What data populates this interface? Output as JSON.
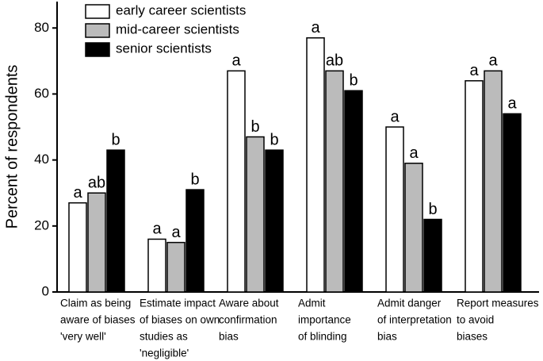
{
  "chart_data": {
    "type": "bar",
    "y_label": "Percent of respondents",
    "categories": [
      [
        "Claim as being",
        "aware of biases",
        " 'very well'"
      ],
      [
        "Estimate impact",
        "of biases on own",
        "studies as",
        "'negligible'"
      ],
      [
        "Aware about",
        "confirmation",
        "bias"
      ],
      [
        "Admit",
        "importance",
        "of blinding"
      ],
      [
        "Admit danger",
        "of interpretation",
        "bias"
      ],
      [
        "Report measures",
        "to avoid",
        "biases"
      ]
    ],
    "series": [
      {
        "name": "early career scientists",
        "color": "#ffffff",
        "values": [
          27,
          16,
          67,
          77,
          50,
          64
        ],
        "letters": [
          "a",
          "a",
          "a",
          "a",
          "a",
          "a"
        ]
      },
      {
        "name": "mid-career scientists",
        "color": "#bbbbbb",
        "values": [
          30,
          15,
          47,
          67,
          39,
          67
        ],
        "letters": [
          "ab",
          "a",
          "b",
          "ab",
          "a",
          "a"
        ]
      },
      {
        "name": "senior scientists",
        "color": "#000000",
        "values": [
          43,
          31,
          43,
          61,
          22,
          54
        ],
        "letters": [
          "b",
          "b",
          "b",
          "b",
          "b",
          "a"
        ]
      }
    ],
    "ylim": [
      0,
      88
    ],
    "yticks": [
      0,
      20,
      40,
      60,
      80
    ],
    "grid": false,
    "legend": "top-left"
  }
}
